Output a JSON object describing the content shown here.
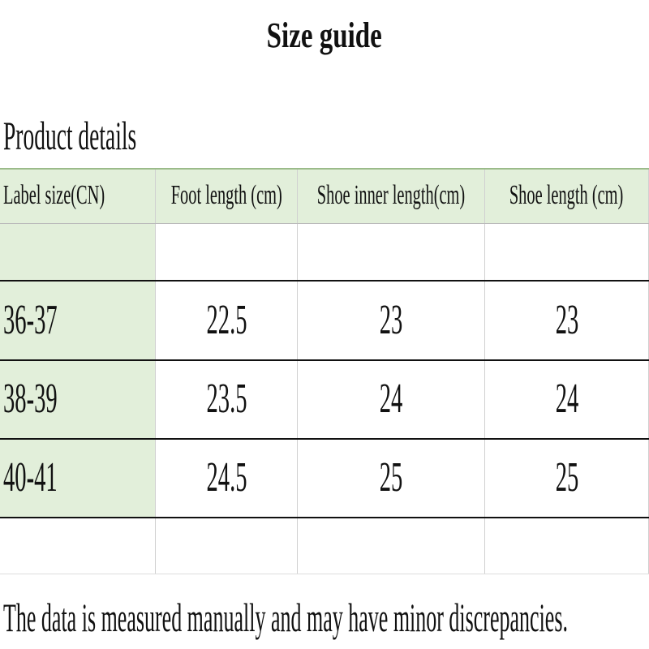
{
  "header": {
    "title": "Size guide",
    "subtitle": "Product details"
  },
  "table": {
    "columns": [
      "Label size(CN)",
      "Foot length (cm)",
      "Shoe inner length(cm)",
      "Shoe length (cm)"
    ],
    "rows": [
      [
        "36-37",
        22.5,
        23,
        23
      ],
      [
        "38-39",
        23.5,
        24,
        24
      ],
      [
        "40-41",
        24.5,
        25,
        25
      ]
    ]
  },
  "footer": {
    "note": "The data is measured manually and may have minor discrepancies."
  }
}
